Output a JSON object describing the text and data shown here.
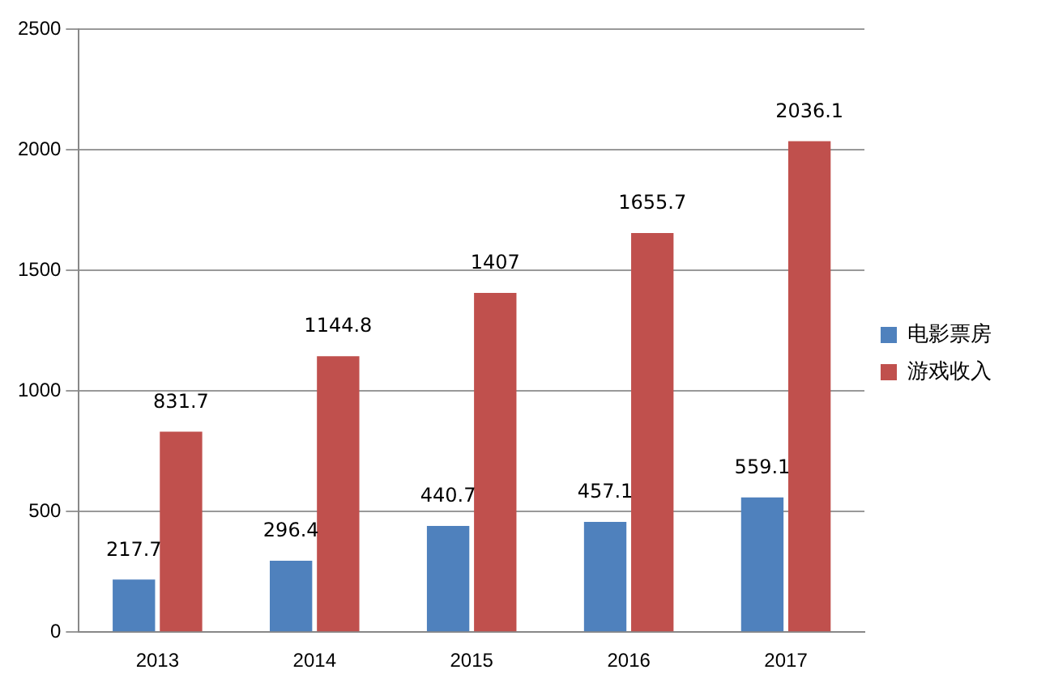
{
  "chart_data": {
    "type": "bar",
    "categories": [
      "2013",
      "2014",
      "2015",
      "2016",
      "2017"
    ],
    "series": [
      {
        "name": "电影票房",
        "color": "#4f81bd",
        "values": [
          217.7,
          296.4,
          440.7,
          457.1,
          559.1
        ]
      },
      {
        "name": "游戏收入",
        "color": "#c0504d",
        "values": [
          831.7,
          1144.8,
          1407,
          1655.7,
          2036.1
        ]
      }
    ],
    "ylim": [
      0,
      2500
    ],
    "yticks": [
      0,
      500,
      1000,
      1500,
      2000,
      2500
    ],
    "grid": "y",
    "legend": "right",
    "data_labels": true
  }
}
